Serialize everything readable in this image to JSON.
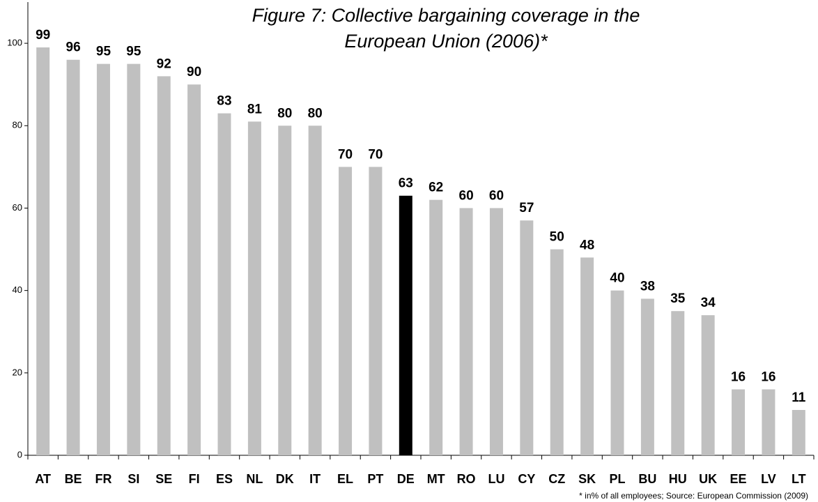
{
  "chart_data": {
    "type": "bar",
    "title": [
      "Figure 7: Collective bargaining coverage in the",
      "European Union (2006)*"
    ],
    "footnote": "* in% of all employees; Source: European Commission (2009)",
    "categories": [
      "AT",
      "BE",
      "FR",
      "SI",
      "SE",
      "FI",
      "ES",
      "NL",
      "DK",
      "IT",
      "EL",
      "PT",
      "DE",
      "MT",
      "RO",
      "LU",
      "CY",
      "CZ",
      "SK",
      "PL",
      "BU",
      "HU",
      "UK",
      "EE",
      "LV",
      "LT"
    ],
    "values": [
      99,
      96,
      95,
      95,
      92,
      90,
      83,
      81,
      80,
      80,
      70,
      70,
      63,
      62,
      60,
      60,
      57,
      50,
      48,
      40,
      38,
      35,
      34,
      16,
      16,
      11
    ],
    "colors": [
      "#c0c0c0",
      "#c0c0c0",
      "#c0c0c0",
      "#c0c0c0",
      "#c0c0c0",
      "#c0c0c0",
      "#c0c0c0",
      "#c0c0c0",
      "#c0c0c0",
      "#c0c0c0",
      "#c0c0c0",
      "#c0c0c0",
      "#000000",
      "#c0c0c0",
      "#c0c0c0",
      "#c0c0c0",
      "#c0c0c0",
      "#c0c0c0",
      "#c0c0c0",
      "#c0c0c0",
      "#c0c0c0",
      "#c0c0c0",
      "#c0c0c0",
      "#c0c0c0",
      "#c0c0c0",
      "#c0c0c0"
    ],
    "ylim": [
      0,
      110
    ],
    "yticks": [
      0,
      20,
      40,
      60,
      80,
      100
    ],
    "grid": false
  }
}
